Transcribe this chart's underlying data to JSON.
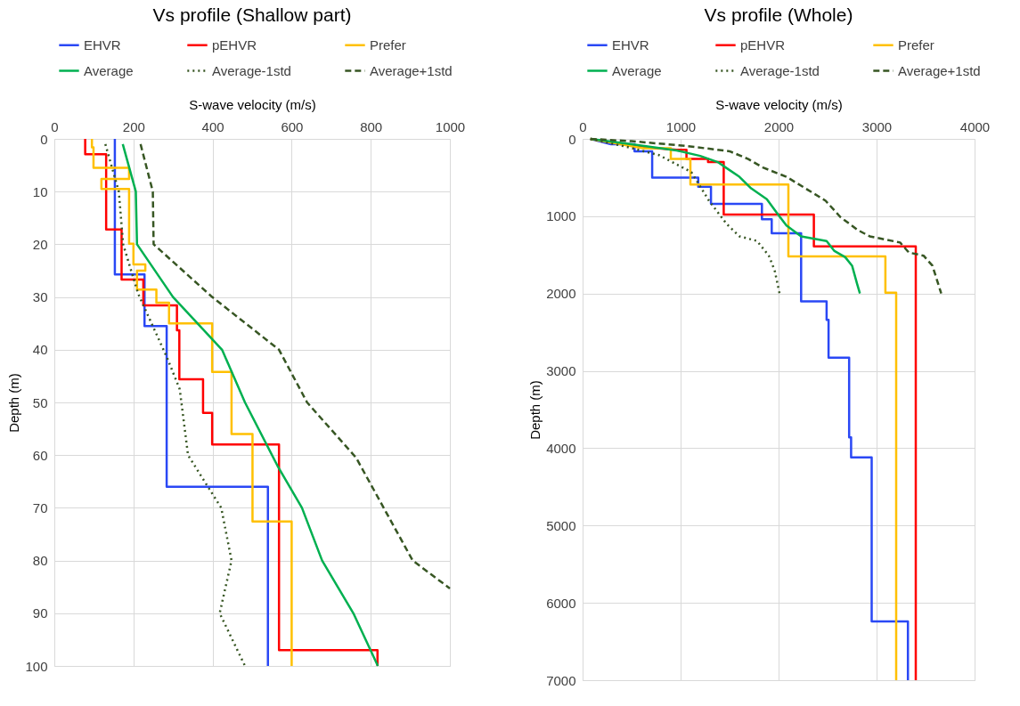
{
  "chart_data": [
    {
      "type": "line",
      "title": "Vs profile (Shallow part)",
      "xlabel": "S-wave velocity (m/s)",
      "ylabel": "Depth (m)",
      "xlim": [
        0,
        1000
      ],
      "xticks": [
        0,
        200,
        400,
        600,
        800,
        1000
      ],
      "ylim": [
        100,
        0
      ],
      "yticks": [
        0,
        10,
        20,
        30,
        40,
        50,
        60,
        70,
        80,
        90,
        100
      ],
      "grid": true,
      "legend": "top",
      "series": [
        {
          "name": "EHVR",
          "color": "#2a48f5",
          "line_style": "solid",
          "x": [
            153,
            153,
            228,
            228,
            284,
            284,
            540,
            540
          ],
          "values": [
            0,
            25.7,
            25.7,
            35.5,
            35.5,
            66,
            66,
            100
          ]
        },
        {
          "name": "pEHVR",
          "color": "#ff0000",
          "line_style": "solid",
          "x": [
            78,
            78,
            131,
            131,
            170,
            170,
            225,
            225,
            310,
            310,
            316,
            316,
            376,
            376,
            399,
            399,
            568,
            568,
            817,
            817
          ],
          "values": [
            0,
            2.9,
            2.9,
            17.2,
            17.2,
            26.7,
            26.7,
            31.6,
            31.6,
            36.3,
            36.3,
            45.6,
            45.6,
            52,
            52,
            58,
            58,
            97,
            97,
            100
          ]
        },
        {
          "name": "Prefer",
          "color": "#ffc000",
          "line_style": "solid",
          "x": [
            95,
            95,
            99,
            99,
            189,
            189,
            119,
            119,
            189,
            189,
            200,
            200,
            230,
            230,
            209,
            209,
            258,
            258,
            290,
            290,
            399,
            399,
            448,
            448,
            501,
            501,
            600,
            600
          ],
          "values": [
            0,
            1.6,
            1.6,
            5.5,
            5.5,
            7.6,
            7.6,
            9.5,
            9.5,
            19.9,
            19.9,
            23.8,
            23.8,
            25,
            25,
            28.6,
            28.6,
            31.1,
            31.1,
            35,
            35,
            44.2,
            44.2,
            56,
            56,
            72.6,
            72.6,
            100
          ]
        },
        {
          "name": "Average",
          "color": "#00b050",
          "line_style": "solid",
          "x": [
            173,
            206,
            209,
            300,
            424,
            482,
            564,
            626,
            677,
            756,
            818
          ],
          "values": [
            1,
            10,
            20,
            30,
            40,
            50,
            62,
            70,
            80,
            90,
            100
          ]
        },
        {
          "name": "Average-1std",
          "color": "#375623",
          "line_style": "dotted",
          "x": [
            129,
            163,
            174,
            212,
            285,
            317,
            338,
            384,
            422,
            448,
            418,
            482
          ],
          "values": [
            1,
            10,
            20,
            29.4,
            41.5,
            47.5,
            60,
            65.5,
            70,
            80,
            90,
            100
          ]
        },
        {
          "name": "Average+1std",
          "color": "#375623",
          "line_style": "dashed",
          "x": [
            218,
            249,
            251,
            399,
            568,
            639,
            763,
            906,
            1000
          ],
          "values": [
            1,
            10,
            20,
            30,
            40,
            50,
            60.5,
            80,
            85.3
          ]
        }
      ]
    },
    {
      "type": "line",
      "title": "Vs profile (Whole)",
      "xlabel": "S-wave velocity (m/s)",
      "ylabel": "Depth (m)",
      "xlim": [
        0,
        4000
      ],
      "xticks": [
        0,
        1000,
        2000,
        3000,
        4000
      ],
      "ylim": [
        7000,
        0
      ],
      "yticks": [
        0,
        1000,
        2000,
        3000,
        4000,
        5000,
        6000,
        7000
      ],
      "grid": true,
      "legend": "top",
      "series": [
        {
          "name": "EHVR",
          "color": "#2a48f5",
          "line_style": "solid",
          "x": [
            80,
            290,
            530,
            530,
            710,
            710,
            1180,
            1180,
            1310,
            1310,
            1830,
            1830,
            1930,
            1930,
            2230,
            2230,
            2490,
            2490,
            2510,
            2510,
            2720,
            2720,
            2740,
            2740,
            2950,
            2950,
            3320,
            3320
          ],
          "values": [
            0,
            70,
            70,
            160,
            160,
            500,
            500,
            620,
            620,
            840,
            840,
            1040,
            1040,
            1220,
            1220,
            2100,
            2100,
            2340,
            2340,
            2830,
            2830,
            3860,
            3860,
            4120,
            4120,
            6240,
            6240,
            7000
          ]
        },
        {
          "name": "pEHVR",
          "color": "#ff0000",
          "line_style": "solid",
          "x": [
            80,
            550,
            960,
            1060,
            1060,
            1280,
            1280,
            1440,
            1440,
            2360,
            2360,
            3400,
            3400
          ],
          "values": [
            0,
            100,
            140,
            140,
            260,
            260,
            300,
            300,
            980,
            980,
            1390,
            1390,
            7000
          ]
        },
        {
          "name": "Prefer",
          "color": "#ffc000",
          "line_style": "solid",
          "x": [
            80,
            620,
            900,
            900,
            1100,
            1100,
            2100,
            2100,
            3090,
            3090,
            3200,
            3200
          ],
          "values": [
            0,
            120,
            120,
            260,
            260,
            590,
            590,
            1520,
            1520,
            1990,
            1990,
            7000
          ]
        },
        {
          "name": "Average",
          "color": "#00b050",
          "line_style": "solid",
          "x": [
            80,
            500,
            960,
            1200,
            1380,
            1460,
            1600,
            1720,
            1880,
            1990,
            2080,
            2230,
            2490,
            2570,
            2680,
            2750,
            2800,
            2830
          ],
          "values": [
            0,
            70,
            150,
            220,
            300,
            370,
            490,
            640,
            780,
            970,
            1120,
            1260,
            1320,
            1450,
            1530,
            1640,
            1870,
            2000
          ]
        },
        {
          "name": "Average-1std",
          "color": "#375623",
          "line_style": "dotted",
          "x": [
            80,
            440,
            780,
            1110,
            1290,
            1470,
            1600,
            1780,
            1900,
            1960,
            2010
          ],
          "values": [
            0,
            100,
            210,
            430,
            800,
            1100,
            1260,
            1320,
            1510,
            1700,
            2000
          ]
        },
        {
          "name": "Average+1std",
          "color": "#375623",
          "line_style": "dashed",
          "x": [
            80,
            500,
            1050,
            1500,
            1690,
            1840,
            2080,
            2300,
            2480,
            2630,
            2810,
            2930,
            3240,
            3330,
            3480,
            3570,
            3660
          ],
          "values": [
            0,
            30,
            90,
            160,
            260,
            370,
            490,
            660,
            800,
            1010,
            1180,
            1260,
            1340,
            1470,
            1510,
            1640,
            2000
          ]
        }
      ]
    }
  ]
}
